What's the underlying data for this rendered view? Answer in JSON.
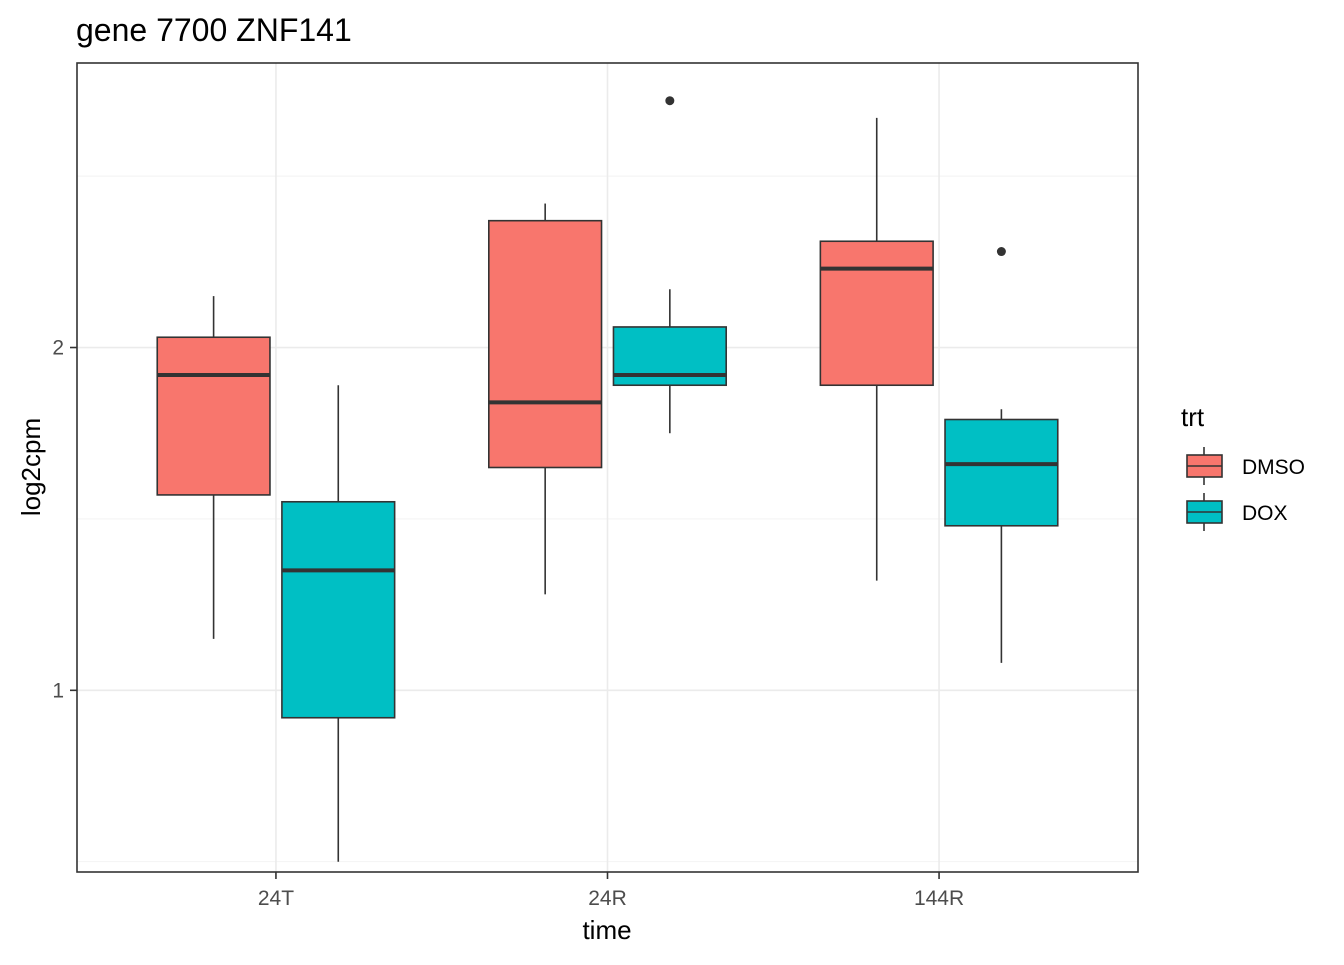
{
  "chart_data": {
    "type": "boxplot",
    "title": "gene 7700 ZNF141",
    "xlabel": "time",
    "ylabel": "log2cpm",
    "categories": [
      "24T",
      "24R",
      "144R"
    ],
    "yticks": [
      1,
      2
    ],
    "ylim": [
      0.47,
      2.83
    ],
    "legend": {
      "title": "trt",
      "position": "right",
      "entries": [
        {
          "name": "DMSO",
          "color": "#F8766D"
        },
        {
          "name": "DOX",
          "color": "#00BFC4"
        }
      ]
    },
    "series": [
      {
        "name": "DMSO",
        "color": "#F8766D",
        "boxes": [
          {
            "category": "24T",
            "whisker_low": 1.15,
            "q1": 1.57,
            "median": 1.92,
            "q3": 2.03,
            "whisker_high": 2.15,
            "outliers": []
          },
          {
            "category": "24R",
            "whisker_low": 1.28,
            "q1": 1.65,
            "median": 1.84,
            "q3": 2.37,
            "whisker_high": 2.42,
            "outliers": []
          },
          {
            "category": "144R",
            "whisker_low": 1.32,
            "q1": 1.89,
            "median": 2.23,
            "q3": 2.31,
            "whisker_high": 2.67,
            "outliers": []
          }
        ]
      },
      {
        "name": "DOX",
        "color": "#00BFC4",
        "boxes": [
          {
            "category": "24T",
            "whisker_low": 0.5,
            "q1": 0.92,
            "median": 1.35,
            "q3": 1.55,
            "whisker_high": 1.89,
            "outliers": []
          },
          {
            "category": "24R",
            "whisker_low": 1.75,
            "q1": 1.89,
            "median": 1.92,
            "q3": 2.06,
            "whisker_high": 2.17,
            "outliers": [
              2.72
            ]
          },
          {
            "category": "144R",
            "whisker_low": 1.08,
            "q1": 1.48,
            "median": 1.66,
            "q3": 1.79,
            "whisker_high": 1.82,
            "outliers": [
              2.28
            ]
          }
        ]
      }
    ]
  }
}
